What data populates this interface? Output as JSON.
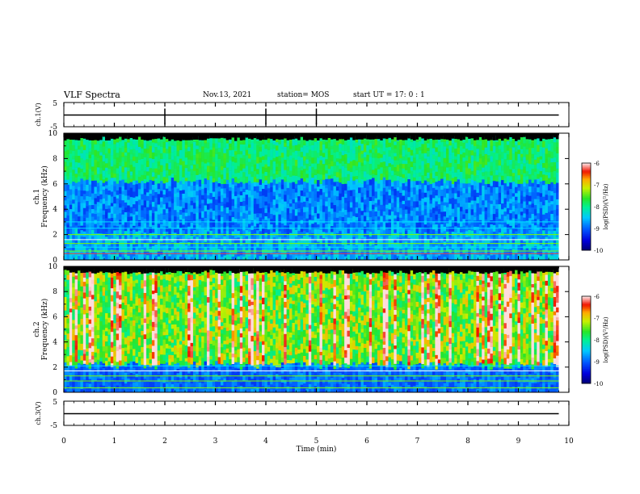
{
  "header": {
    "title": "VLF Spectra",
    "date": "Nov.13, 2021",
    "station": "station= MOS",
    "start": "start  UT =   17: 0  : 1"
  },
  "chart_data": [
    {
      "type": "line",
      "panel": "ch1-waveform",
      "ylabel": "ch.1(V)",
      "ylim": [
        -5,
        5
      ],
      "yticks": [
        5,
        -5
      ],
      "xlim": [
        0,
        10
      ],
      "series": [
        {
          "values": "near-constant trace at ~0 V with small spikes"
        }
      ]
    },
    {
      "type": "heatmap",
      "panel": "ch1-spectrogram",
      "ylabel_top": "ch.1",
      "ylabel": "Frequency (kHz)",
      "ylim": [
        0,
        10
      ],
      "yticks": [
        0,
        2,
        4,
        6,
        8,
        10
      ],
      "xlim": [
        0,
        10
      ],
      "data_extent_min": 9.8,
      "colorbar": {
        "label": "log(PSD)(V²/Hz)",
        "range": [
          -10,
          -6
        ],
        "ticks": [
          -6,
          -7,
          -8,
          -9,
          -10
        ]
      }
    },
    {
      "type": "heatmap",
      "panel": "ch2-spectrogram",
      "ylabel_top": "ch.2",
      "ylabel": "Frequency (kHz)",
      "ylim": [
        0,
        10
      ],
      "yticks": [
        0,
        2,
        4,
        6,
        8,
        10
      ],
      "xlim": [
        0,
        10
      ],
      "data_extent_min": 9.8,
      "colorbar": {
        "label": "log(PSD)(V²/Hz)",
        "range": [
          -10,
          -6
        ],
        "ticks": [
          -6,
          -7,
          -8,
          -9,
          -10
        ]
      }
    },
    {
      "type": "line",
      "panel": "ch3-waveform",
      "ylabel": "ch.3(V)",
      "ylim": [
        -5,
        5
      ],
      "yticks": [
        5,
        -5
      ],
      "xlim": [
        0,
        10
      ],
      "xlabel": "Time (min)",
      "xticks": [
        0,
        1,
        2,
        3,
        4,
        5,
        6,
        7,
        8,
        9,
        10
      ],
      "series": [
        {
          "values": "near-constant trace at ~0 V"
        }
      ]
    }
  ]
}
